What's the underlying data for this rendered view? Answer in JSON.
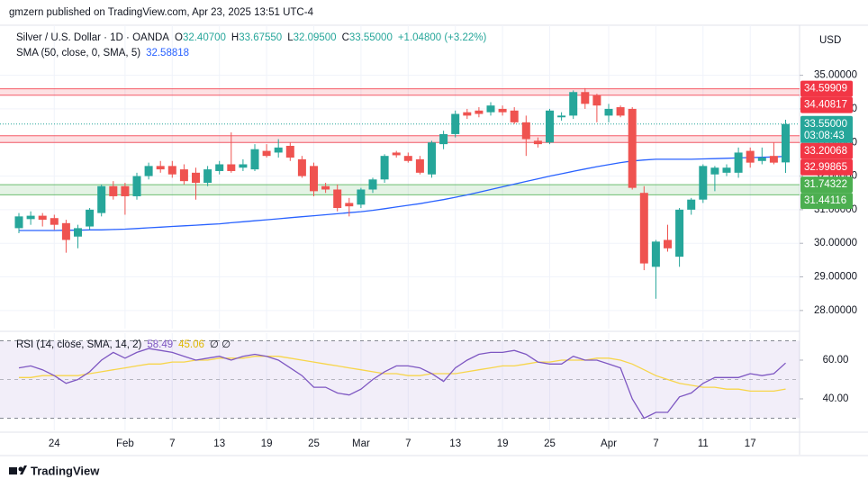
{
  "page_header": "gmzern published on TradingView.com, Apr 23, 2025 13:51 UTC-4",
  "currency": "USD",
  "footer_brand": "TradingView",
  "chart_data": {
    "type": "candlestick",
    "header_parts": [
      "Silver / U.S. Dollar · 1D · OANDA",
      "O",
      "32.40700",
      "H",
      "33.67550",
      "L",
      "32.09500",
      "C",
      "33.55000",
      "+1.04800 (+3.22%)"
    ],
    "categories": [
      null,
      null,
      null,
      "24",
      null,
      null,
      null,
      null,
      null,
      "Feb",
      null,
      null,
      null,
      "7",
      null,
      null,
      null,
      "13",
      null,
      null,
      null,
      "19",
      null,
      null,
      null,
      "25",
      null,
      null,
      null,
      "Mar",
      null,
      null,
      null,
      "7",
      null,
      null,
      null,
      "13",
      null,
      null,
      null,
      "19",
      null,
      null,
      null,
      "25",
      null,
      null,
      null,
      null,
      "Apr",
      null,
      null,
      null,
      "7",
      null,
      null,
      null,
      "11",
      null,
      null,
      null,
      "17",
      null,
      null,
      null
    ],
    "open": [
      30.45,
      30.72,
      30.82,
      30.75,
      30.6,
      30.2,
      30.5,
      30.9,
      31.7,
      31.7,
      31.4,
      32.0,
      32.3,
      32.3,
      32.2,
      32.1,
      31.8,
      32.15,
      32.35,
      32.25,
      32.2,
      32.75,
      32.7,
      32.9,
      32.5,
      32.3,
      31.7,
      31.6,
      31.2,
      31.15,
      31.6,
      31.9,
      32.7,
      32.6,
      32.5,
      32.05,
      32.95,
      33.25,
      33.9,
      33.95,
      33.9,
      34.0,
      33.95,
      33.6,
      33.05,
      33.0,
      33.75,
      33.8,
      34.5,
      34.4,
      33.8,
      34.05,
      34.0,
      31.5,
      29.3,
      30.1,
      29.6,
      31.0,
      31.3,
      32.05,
      32.1,
      32.1,
      32.75,
      32.45,
      32.6,
      32.407
    ],
    "high": [
      30.9,
      30.95,
      30.9,
      30.85,
      30.7,
      30.55,
      31.05,
      31.75,
      31.85,
      31.8,
      32.1,
      32.4,
      32.45,
      32.45,
      32.35,
      32.25,
      32.3,
      32.45,
      33.3,
      32.5,
      32.95,
      32.95,
      33.1,
      33.0,
      32.6,
      32.4,
      31.8,
      31.75,
      31.35,
      31.65,
      31.95,
      32.65,
      32.75,
      32.7,
      32.6,
      33.05,
      33.35,
      33.95,
      34.0,
      34.05,
      34.2,
      34.1,
      34.05,
      33.8,
      33.15,
      34.0,
      33.9,
      34.55,
      34.62,
      34.45,
      34.15,
      34.1,
      34.05,
      31.7,
      30.1,
      30.55,
      31.05,
      31.35,
      32.35,
      32.3,
      32.35,
      32.85,
      32.85,
      32.85,
      33.0,
      33.6755
    ],
    "low": [
      30.3,
      30.55,
      30.5,
      30.4,
      29.72,
      29.85,
      30.4,
      30.8,
      31.3,
      30.85,
      31.3,
      31.9,
      32.1,
      31.95,
      31.75,
      31.3,
      31.7,
      32.05,
      32.1,
      32.15,
      32.15,
      32.55,
      32.55,
      32.45,
      31.95,
      31.4,
      31.5,
      30.95,
      30.8,
      31.05,
      31.5,
      31.8,
      32.55,
      32.4,
      32.05,
      31.95,
      32.8,
      33.15,
      33.7,
      33.75,
      33.8,
      33.8,
      33.55,
      32.6,
      32.85,
      32.95,
      33.65,
      33.7,
      34.0,
      33.6,
      33.6,
      33.75,
      31.6,
      29.2,
      28.35,
      29.75,
      29.3,
      30.85,
      31.2,
      31.55,
      32.0,
      31.95,
      32.25,
      32.35,
      32.35,
      32.095
    ],
    "close": [
      30.8,
      30.82,
      30.7,
      30.55,
      30.1,
      30.45,
      31.0,
      31.7,
      31.4,
      31.4,
      32.0,
      32.3,
      32.2,
      32.05,
      31.85,
      31.8,
      32.2,
      32.35,
      32.15,
      32.35,
      32.8,
      32.6,
      32.85,
      32.55,
      32.0,
      31.55,
      31.6,
      31.05,
      31.1,
      31.6,
      31.9,
      32.6,
      32.62,
      32.45,
      32.1,
      33.0,
      33.25,
      33.85,
      33.8,
      33.85,
      34.1,
      33.9,
      33.6,
      33.1,
      32.95,
      33.95,
      33.8,
      34.5,
      34.15,
      34.1,
      34.0,
      33.8,
      31.65,
      29.4,
      30.05,
      29.85,
      31.0,
      31.3,
      32.3,
      32.25,
      32.25,
      32.7,
      32.4,
      32.55,
      32.4,
      33.55
    ],
    "up_color": "#26a69a",
    "down_color": "#ef5350",
    "sma": {
      "name": "SMA (50, close, 0, SMA, 5)",
      "color": "#2962ff",
      "values": [
        30.38,
        30.38,
        30.38,
        30.38,
        30.39,
        30.39,
        30.4,
        30.4,
        30.41,
        30.42,
        30.44,
        30.46,
        30.48,
        30.5,
        30.52,
        30.54,
        30.56,
        30.58,
        30.61,
        30.64,
        30.67,
        30.7,
        30.73,
        30.76,
        30.79,
        30.82,
        30.85,
        30.88,
        30.91,
        30.94,
        30.98,
        31.03,
        31.08,
        31.13,
        31.18,
        31.24,
        31.3,
        31.37,
        31.44,
        31.52,
        31.6,
        31.68,
        31.76,
        31.84,
        31.92,
        32.0,
        32.07,
        32.14,
        32.21,
        32.28,
        32.34,
        32.4,
        32.45,
        32.48,
        32.5,
        32.5,
        32.5,
        32.5,
        32.51,
        32.52,
        32.53,
        32.54,
        32.55,
        32.56,
        32.57,
        32.58818
      ]
    },
    "zones": [
      {
        "color": "#f23645",
        "values": [
          34.40817,
          34.59909
        ]
      },
      {
        "color": "#f23645",
        "values": [
          32.99865,
          33.20068
        ]
      },
      {
        "color": "#4caf50",
        "values": [
          31.44116,
          31.74322
        ]
      }
    ],
    "last_price": {
      "value": 33.55,
      "label": "33.55000"
    },
    "countdown": "03:08:43",
    "ylim": [
      27.46,
      36.49
    ],
    "yticks": [
      {
        "value": 28,
        "label": "28.00000"
      },
      {
        "value": 29,
        "label": "29.00000"
      },
      {
        "value": 30,
        "label": "30.00000"
      },
      {
        "value": 31,
        "label": "31.00000"
      },
      {
        "value": 32,
        "label": "32.00000"
      },
      {
        "value": 33,
        "label": "33.00000"
      },
      {
        "value": 34,
        "label": "34.00000"
      },
      {
        "value": 35,
        "label": "35.00000"
      }
    ],
    "grid": true,
    "rsi": {
      "name": "RSI (14, close, SMA, 14, 2)",
      "color": "#7e57c2",
      "sma_color": "#f7d54a",
      "values": [
        56,
        57,
        55,
        52,
        48,
        50,
        54,
        60,
        64,
        61,
        64,
        66,
        65,
        64,
        62,
        60,
        61,
        62,
        60,
        62,
        63,
        62,
        60,
        56,
        52,
        46,
        46,
        43,
        42,
        45,
        50,
        54,
        57,
        57,
        56,
        53,
        49,
        56,
        60,
        63,
        64,
        64,
        65,
        63,
        59,
        58,
        58,
        62,
        60,
        60,
        58,
        56,
        40,
        30,
        33,
        33,
        41,
        43,
        48,
        51,
        51,
        51,
        53,
        52,
        53,
        58.49
      ],
      "sma_values": [
        51,
        51,
        52,
        52,
        52,
        52,
        53,
        54,
        55,
        56,
        57,
        58,
        58,
        59,
        59,
        60,
        60,
        61,
        61,
        61,
        62,
        62,
        62,
        61,
        60,
        59,
        58,
        57,
        56,
        55,
        54,
        53,
        53,
        52,
        52,
        53,
        53,
        53,
        54,
        55,
        56,
        57,
        57,
        58,
        59,
        59,
        60,
        60,
        60,
        61,
        61,
        60,
        58,
        55,
        52,
        50,
        48,
        47,
        46,
        46,
        45,
        45,
        44,
        44,
        44,
        45.06
      ],
      "empty_marks": "∅ ∅",
      "levels": [
        70,
        50,
        30
      ],
      "ylim": [
        23.7,
        73.95
      ],
      "yticks": [
        {
          "value": 40,
          "label": "40.00"
        },
        {
          "value": 60,
          "label": "60.00"
        }
      ]
    }
  }
}
